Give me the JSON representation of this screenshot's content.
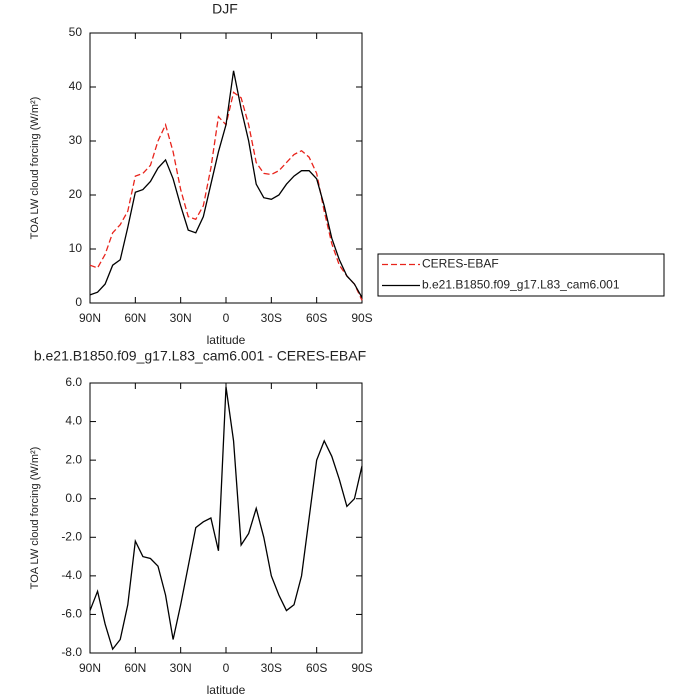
{
  "chart_data": [
    {
      "type": "line",
      "title": "DJF",
      "x_label": "latitude",
      "y_label": "TOA LW cloud forcing (W/m²)",
      "x": [
        90,
        85,
        80,
        75,
        70,
        65,
        60,
        55,
        50,
        45,
        40,
        35,
        30,
        25,
        20,
        15,
        10,
        5,
        0,
        -5,
        -10,
        -15,
        -20,
        -25,
        -30,
        -35,
        -40,
        -45,
        -50,
        -55,
        -60,
        -65,
        -70,
        -75,
        -80,
        -85,
        -90
      ],
      "series": [
        {
          "name": "CERES-EBAF",
          "color": "#e8241c",
          "dash": true,
          "values": [
            7,
            6.5,
            9,
            13,
            14.5,
            17,
            23.5,
            24,
            25.5,
            30,
            33,
            28,
            21,
            16,
            15.5,
            18,
            25,
            34.5,
            33,
            39,
            38,
            33,
            26,
            24,
            23.8,
            24.5,
            26,
            27.5,
            28.2,
            27,
            24,
            17,
            11,
            7,
            5,
            3.5,
            0.5
          ]
        },
        {
          "name": "b.e21.B1850.f09_g17.L83_cam6.001",
          "color": "#000000",
          "dash": false,
          "values": [
            1.5,
            2,
            3.5,
            7,
            8,
            14,
            20.5,
            21,
            22.5,
            25,
            26.5,
            23,
            18,
            13.5,
            13,
            16,
            22,
            28,
            33,
            43,
            36,
            30,
            22,
            19.5,
            19.2,
            20,
            22,
            23.5,
            24.5,
            24.5,
            23,
            18,
            12,
            8,
            5,
            3.5,
            1
          ]
        }
      ],
      "xlim": [
        90,
        -90
      ],
      "xticks": [
        {
          "value": 90,
          "label": "90N"
        },
        {
          "value": 60,
          "label": "60N"
        },
        {
          "value": 30,
          "label": "30N"
        },
        0,
        {
          "value": -30,
          "label": "30S"
        },
        {
          "value": -60,
          "label": "60S"
        },
        {
          "value": -90,
          "label": "90S"
        }
      ],
      "ylim": [
        0,
        50
      ],
      "yticks": [
        0,
        10,
        20,
        30,
        40,
        50
      ]
    },
    {
      "type": "line",
      "title": "b.e21.B1850.f09_g17.L83_cam6.001 - CERES-EBAF",
      "x_label": "latitude",
      "y_label": "TOA LW cloud forcing (W/m²)",
      "x": [
        90,
        85,
        80,
        75,
        70,
        65,
        60,
        55,
        50,
        45,
        40,
        35,
        30,
        25,
        20,
        15,
        10,
        5,
        0,
        -5,
        -10,
        -15,
        -20,
        -25,
        -30,
        -35,
        -40,
        -45,
        -50,
        -55,
        -60,
        -65,
        -70,
        -75,
        -80,
        -85,
        -90
      ],
      "values": [
        -5.8,
        -4.8,
        -6.5,
        -7.8,
        -7.3,
        -5.5,
        -2.2,
        -3,
        -3.1,
        -3.5,
        -5,
        -7.3,
        -5.5,
        -3.5,
        -1.5,
        -1.2,
        -1,
        -2.7,
        5.8,
        3,
        -2.4,
        -1.8,
        -0.5,
        -2,
        -4,
        -5,
        -5.8,
        -5.5,
        -4,
        -1,
        2,
        3,
        2.2,
        1,
        -0.4,
        0,
        1.7
      ],
      "color": "#000000",
      "xlim": [
        90,
        -90
      ],
      "xticks": [
        {
          "value": 90,
          "label": "90N"
        },
        {
          "value": 60,
          "label": "60N"
        },
        {
          "value": 30,
          "label": "30N"
        },
        0,
        {
          "value": -30,
          "label": "30S"
        },
        {
          "value": -60,
          "label": "60S"
        },
        {
          "value": -90,
          "label": "90S"
        }
      ],
      "ylim": [
        -8,
        6
      ],
      "yticks": [
        {
          "value": -8,
          "label": "-8.0"
        },
        {
          "value": -6,
          "label": "-6.0"
        },
        {
          "value": -4,
          "label": "-4.0"
        },
        {
          "value": -2,
          "label": "-2.0"
        },
        {
          "value": 0,
          "label": "0.0"
        },
        {
          "value": 2,
          "label": "2.0"
        },
        {
          "value": 4,
          "label": "4.0"
        },
        {
          "value": 6,
          "label": "6.0"
        }
      ]
    }
  ]
}
